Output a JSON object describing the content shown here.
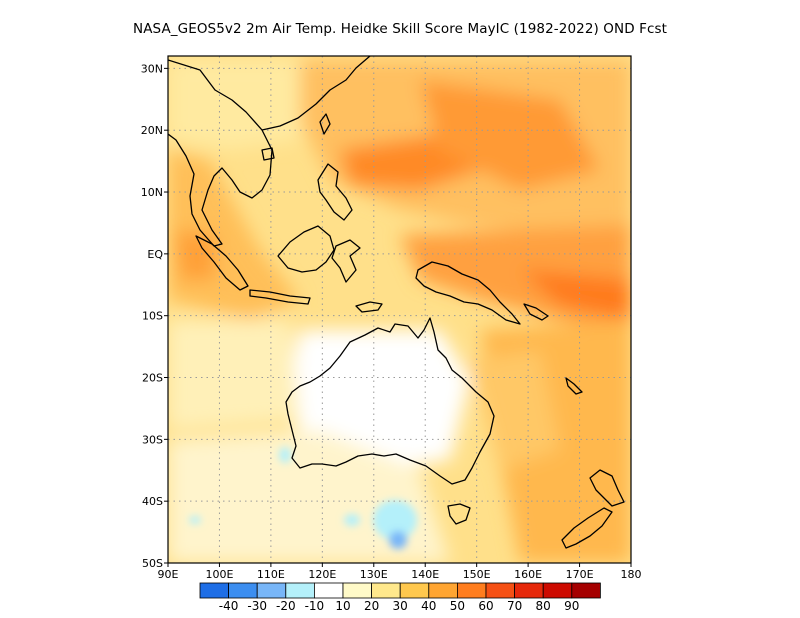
{
  "title": "NASA_GEOS5v2  2m Air Temp. Heidke Skill Score MayIC (1982-2022) OND Fcst",
  "map": {
    "lon_range": [
      90,
      180
    ],
    "lat_range": [
      -50,
      32
    ],
    "lon_ticks": [
      {
        "value": 90,
        "label": "90E"
      },
      {
        "value": 100,
        "label": "100E"
      },
      {
        "value": 110,
        "label": "110E"
      },
      {
        "value": 120,
        "label": "120E"
      },
      {
        "value": 130,
        "label": "130E"
      },
      {
        "value": 140,
        "label": "140E"
      },
      {
        "value": 150,
        "label": "150E"
      },
      {
        "value": 160,
        "label": "160E"
      },
      {
        "value": 170,
        "label": "170E"
      },
      {
        "value": 180,
        "label": "180"
      }
    ],
    "lat_ticks": [
      {
        "value": 30,
        "label": "30N"
      },
      {
        "value": 20,
        "label": "20N"
      },
      {
        "value": 10,
        "label": "10N"
      },
      {
        "value": 0,
        "label": "EQ"
      },
      {
        "value": -10,
        "label": "10S"
      },
      {
        "value": -20,
        "label": "20S"
      },
      {
        "value": -30,
        "label": "30S"
      },
      {
        "value": -40,
        "label": "40S"
      },
      {
        "value": -50,
        "label": "50S"
      }
    ]
  },
  "colorbar": {
    "colors": [
      "#1e6ee6",
      "#3c8ef0",
      "#78b6f8",
      "#b4f0fa",
      "#ffffff",
      "#fffac8",
      "#ffe88c",
      "#ffc84e",
      "#ffa532",
      "#ff7d1e",
      "#f55014",
      "#e6280a",
      "#cd0a00",
      "#a50000"
    ],
    "labels": [
      "-40",
      "-30",
      "-20",
      "-10",
      "10",
      "20",
      "30",
      "40",
      "50",
      "60",
      "70",
      "80",
      "90"
    ]
  },
  "chart_data": {
    "type": "heatmap",
    "title": "NASA_GEOS5v2  2m Air Temp. Heidke Skill Score MayIC (1982-2022) OND Fcst",
    "x_axis": {
      "range": [
        90,
        180
      ],
      "ticks": [
        "90E",
        "100E",
        "110E",
        "120E",
        "130E",
        "140E",
        "150E",
        "160E",
        "170E",
        "180"
      ]
    },
    "y_axis": {
      "range": [
        -50,
        32
      ],
      "ticks": [
        "50S",
        "40S",
        "30S",
        "20S",
        "10S",
        "EQ",
        "10N",
        "20N",
        "30N"
      ]
    },
    "grid": true,
    "color_levels": [
      -40,
      -30,
      -20,
      -10,
      10,
      20,
      30,
      40,
      50,
      60,
      70,
      80,
      90
    ],
    "regions": [
      {
        "lon": [
          145,
          180
        ],
        "lat": [
          -10,
          0
        ],
        "value": 55
      },
      {
        "lon": [
          120,
          150
        ],
        "lat": [
          10,
          25
        ],
        "value": 50
      },
      {
        "lon": [
          90,
          100
        ],
        "lat": [
          -5,
          20
        ],
        "value": 40
      },
      {
        "lon": [
          150,
          180
        ],
        "lat": [
          -45,
          -25
        ],
        "value": 40
      },
      {
        "lon": [
          120,
          145
        ],
        "lat": [
          -32,
          -15
        ],
        "value": 5
      },
      {
        "lon": [
          130,
          142
        ],
        "lat": [
          -44,
          -38
        ],
        "value": -20
      }
    ]
  }
}
